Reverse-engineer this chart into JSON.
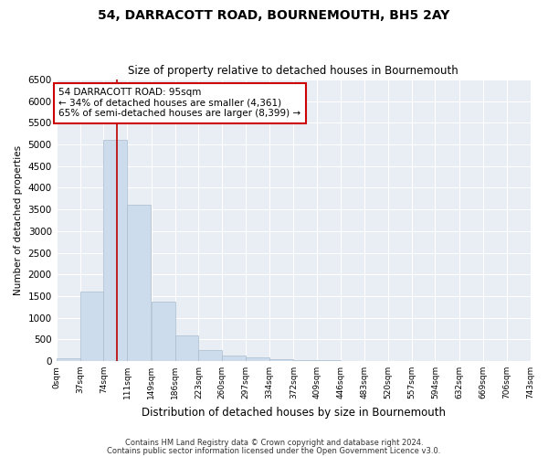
{
  "title": "54, DARRACOTT ROAD, BOURNEMOUTH, BH5 2AY",
  "subtitle": "Size of property relative to detached houses in Bournemouth",
  "xlabel": "Distribution of detached houses by size in Bournemouth",
  "ylabel": "Number of detached properties",
  "bar_color": "#ccdcec",
  "bar_edge_color": "#aabccc",
  "background_color": "#e8eef4",
  "annotation_box_text": "54 DARRACOTT ROAD: 95sqm\n← 34% of detached houses are smaller (4,361)\n65% of semi-detached houses are larger (8,399) →",
  "vline_x": 95,
  "vline_color": "#bb0000",
  "tick_labels": [
    "0sqm",
    "37sqm",
    "74sqm",
    "111sqm",
    "149sqm",
    "186sqm",
    "223sqm",
    "260sqm",
    "297sqm",
    "334sqm",
    "372sqm",
    "409sqm",
    "446sqm",
    "483sqm",
    "520sqm",
    "557sqm",
    "594sqm",
    "632sqm",
    "669sqm",
    "706sqm",
    "743sqm"
  ],
  "bin_edges": [
    0,
    37,
    74,
    111,
    149,
    186,
    223,
    260,
    297,
    334,
    372,
    409,
    446,
    483,
    520,
    557,
    594,
    632,
    669,
    706,
    743
  ],
  "bar_heights": [
    55,
    1600,
    5100,
    3600,
    1380,
    580,
    250,
    120,
    90,
    50,
    28,
    10,
    4,
    2,
    1,
    0,
    0,
    0,
    0,
    0
  ],
  "ylim": [
    0,
    6500
  ],
  "yticks": [
    0,
    500,
    1000,
    1500,
    2000,
    2500,
    3000,
    3500,
    4000,
    4500,
    5000,
    5500,
    6000,
    6500
  ],
  "footnote1": "Contains HM Land Registry data © Crown copyright and database right 2024.",
  "footnote2": "Contains public sector information licensed under the Open Government Licence v3.0."
}
